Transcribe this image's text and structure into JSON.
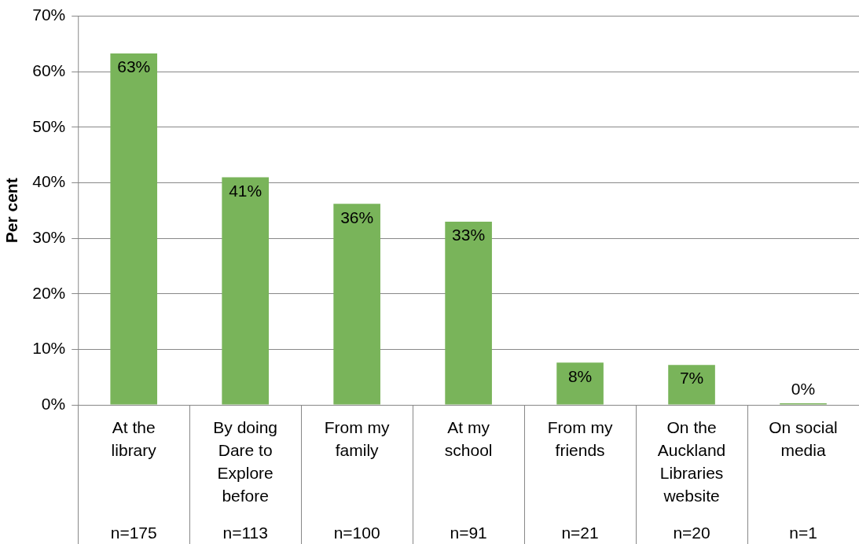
{
  "chart_data": {
    "type": "bar",
    "ylabel": "Per cent",
    "categories": [
      "At the library",
      "By doing Dare to Explore before",
      "From my family",
      "At my school",
      "From my friends",
      "On the Auckland Libraries website",
      "On social media"
    ],
    "series": [
      {
        "color": "#79b45a",
        "values": [
          63.3,
          41,
          36.2,
          33,
          7.6,
          7.2,
          0.3
        ],
        "value_labels": [
          "63%",
          "41%",
          "36%",
          "33%",
          "8%",
          "7%",
          "0%"
        ]
      }
    ],
    "ylim": [
      0,
      70
    ],
    "yticks": [
      {
        "value": 0,
        "label": "0%"
      },
      {
        "value": 10,
        "label": "10%"
      },
      {
        "value": 20,
        "label": "20%"
      },
      {
        "value": 30,
        "label": "30%"
      },
      {
        "value": 40,
        "label": "40%"
      },
      {
        "value": 50,
        "label": "50%"
      },
      {
        "value": 60,
        "label": "60%"
      },
      {
        "value": 70,
        "label": "70%"
      }
    ],
    "grid": "y",
    "legend": false,
    "annotations": [
      "n=175",
      "n=113",
      "n=100",
      "n=91",
      "n=21",
      "n=20",
      "n=1"
    ]
  }
}
